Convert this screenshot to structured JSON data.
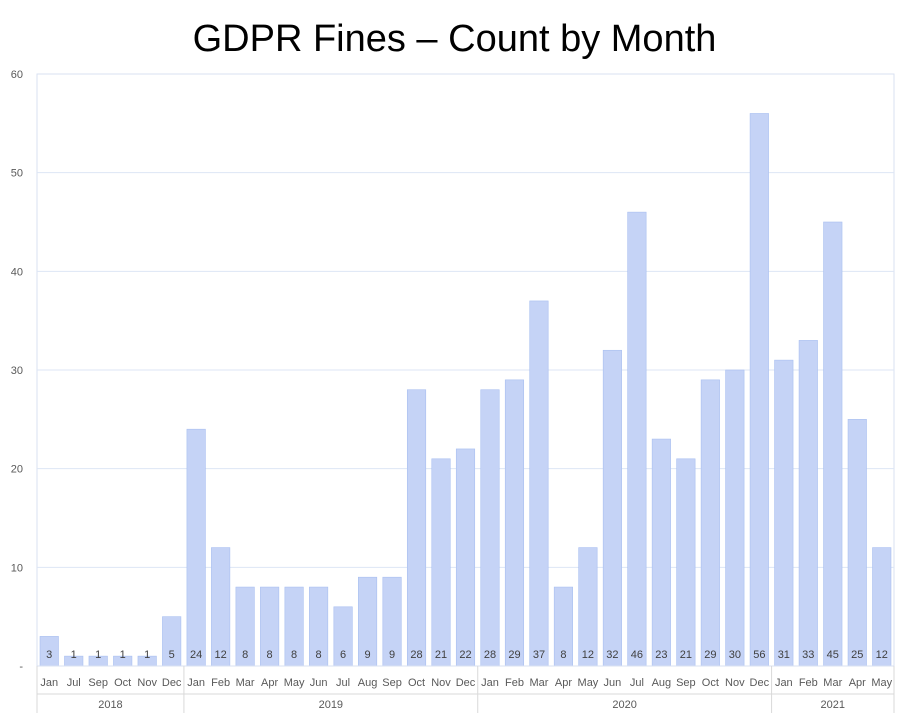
{
  "chart_data": {
    "type": "bar",
    "title": "GDPR Fines – Count by Month",
    "xlabel": "",
    "ylabel": "",
    "ylim": [
      0,
      60
    ],
    "yticks": [
      "-",
      "10",
      "20",
      "30",
      "40",
      "50",
      "60"
    ],
    "grid": true,
    "bar_color": "#c5d3f6",
    "bar_edge_color": "#a9bff0",
    "categories": [
      "Jan",
      "Jul",
      "Sep",
      "Oct",
      "Nov",
      "Dec",
      "Jan",
      "Feb",
      "Mar",
      "Apr",
      "May",
      "Jun",
      "Jul",
      "Aug",
      "Sep",
      "Oct",
      "Nov",
      "Dec",
      "Jan",
      "Feb",
      "Mar",
      "Apr",
      "May",
      "Jun",
      "Jul",
      "Aug",
      "Sep",
      "Oct",
      "Nov",
      "Dec",
      "Jan",
      "Feb",
      "Mar",
      "Apr",
      "May"
    ],
    "values": [
      3,
      1,
      1,
      1,
      1,
      5,
      24,
      12,
      8,
      8,
      8,
      8,
      6,
      9,
      9,
      28,
      21,
      22,
      28,
      29,
      37,
      8,
      12,
      32,
      46,
      23,
      21,
      29,
      30,
      56,
      31,
      33,
      45,
      25,
      12
    ],
    "groups": [
      {
        "label": "2018",
        "count": 6
      },
      {
        "label": "2019",
        "count": 12
      },
      {
        "label": "2020",
        "count": 12
      },
      {
        "label": "2021",
        "count": 5
      }
    ]
  }
}
